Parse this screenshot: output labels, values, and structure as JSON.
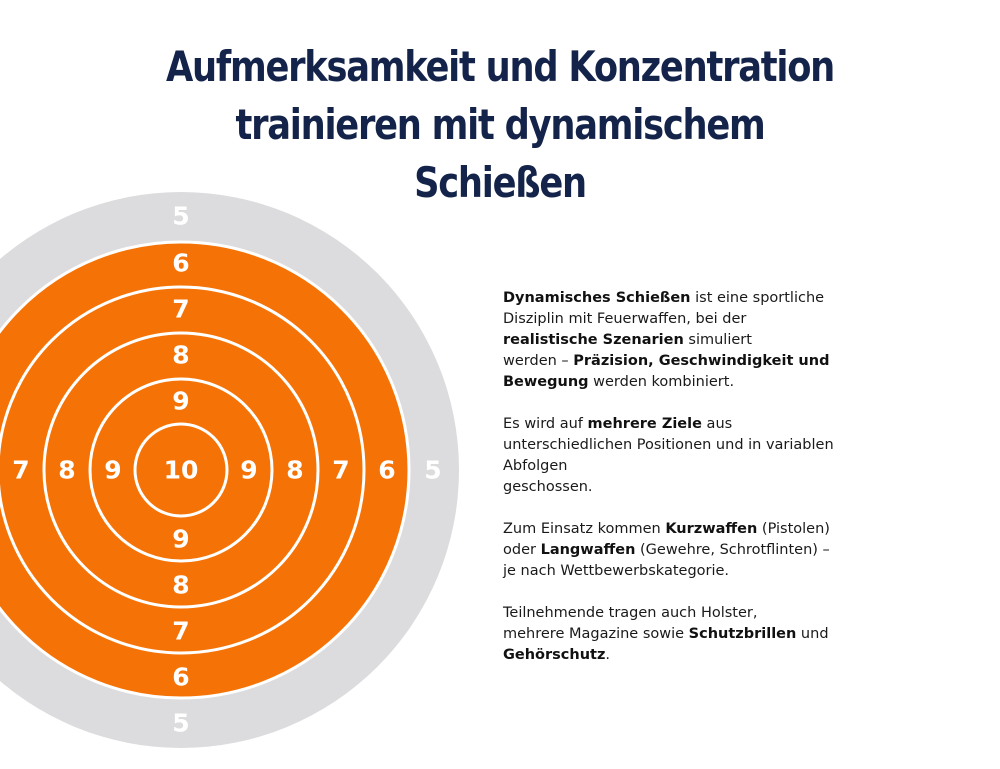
{
  "title": {
    "line1": "Aufmerksamkeit und Konzentration",
    "line2": "trainieren mit dynamischem",
    "line3": "Schießen"
  },
  "target": {
    "ring_labels": {
      "top": [
        "5",
        "6",
        "7",
        "8",
        "9"
      ],
      "center": "10",
      "bottom": [
        "9",
        "8",
        "7",
        "6",
        "5"
      ],
      "left": [
        "7",
        "8",
        "9"
      ],
      "right": [
        "9",
        "8",
        "7",
        "6",
        "5"
      ]
    },
    "colors": {
      "outer_ring": "#dcdcde",
      "target_fill": "#f57306",
      "ring_lines": "#ffffff",
      "numbers": "#ffffff"
    }
  },
  "info": {
    "p1": {
      "l1_bold": "Dynamisches Schießen",
      "l1_rest": " ist eine sportliche",
      "l2": "Disziplin mit Feuerwaffen, bei der",
      "l3_bold": "realistische Szenarien",
      "l3_rest": " simuliert",
      "l4_pre": "werden – ",
      "l4_bold": "Präzision, Geschwindigkeit und",
      "l5_bold": "Bewegung",
      "l5_rest": " werden kombiniert."
    },
    "p2": {
      "l1_pre": "Es wird auf ",
      "l1_bold": "mehrere Ziele",
      "l1_rest": " aus",
      "l2": "unterschiedlichen Positionen und in variablen",
      "l3": "Abfolgen",
      "l4": "geschossen."
    },
    "p3": {
      "l1_pre": "Zum Einsatz kommen ",
      "l1_bold": "Kurzwaffen",
      "l1_rest": " (Pistolen)",
      "l2_pre": "oder ",
      "l2_bold": "Langwaffen",
      "l2_rest": " (Gewehre, Schrotflinten) –",
      "l3": "je nach Wettbewerbskategorie."
    },
    "p4": {
      "l1": "Teilnehmende tragen auch Holster,",
      "l2_pre": "mehrere Magazine sowie ",
      "l2_bold": "Schutzbrillen",
      "l2_rest": " und",
      "l3_bold": "Gehörschutz",
      "l3_rest": "."
    }
  }
}
